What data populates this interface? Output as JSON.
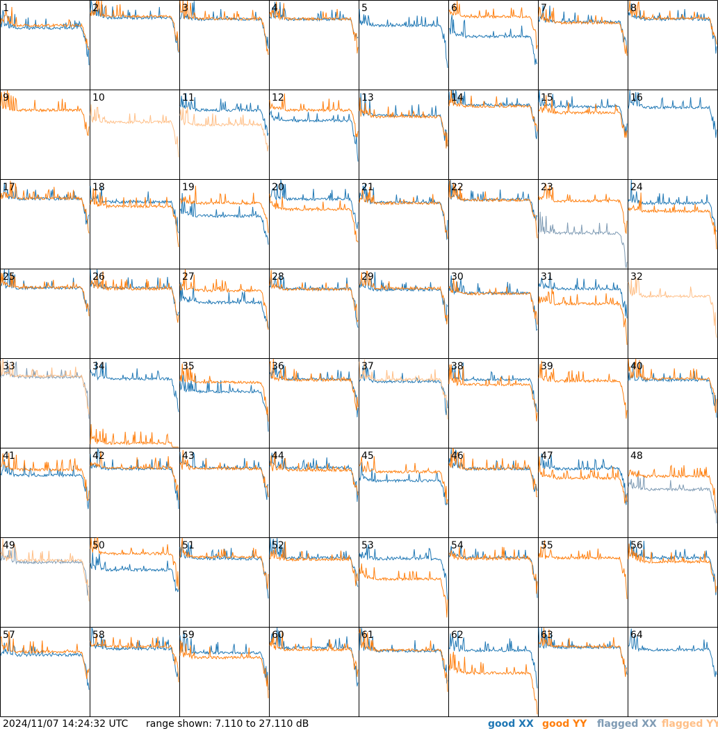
{
  "colors": {
    "good_xx": "#1f77b4",
    "good_yy": "#ff7f0e",
    "flagged_xx": "#7f9bb4",
    "flagged_yy": "#ffbf87"
  },
  "footer": {
    "timestamp": "2024/11/07 14:24:32 UTC",
    "range": "range shown: 7.110 to 27.110 dB",
    "legend_good_xx": "good XX",
    "legend_good_yy": "good YY",
    "legend_flagged_xx": "flagged XX",
    "legend_flagged_yy": "flagged YY"
  },
  "chart_data": {
    "type": "line",
    "title": "",
    "xlabel": "",
    "ylabel": "",
    "ylim": [
      7.11,
      27.11
    ],
    "unit": "dB",
    "grid": "8x8 small multiples",
    "panels": [
      {
        "id": "1",
        "xx": {
          "level": 20.9,
          "flag": false
        },
        "yy": {
          "level": 21.5,
          "flag": false
        }
      },
      {
        "id": "2",
        "xx": {
          "level": 23.2,
          "flag": false
        },
        "yy": {
          "level": 23.6,
          "flag": false
        }
      },
      {
        "id": "3",
        "xx": {
          "level": 22.9,
          "flag": false
        },
        "yy": {
          "level": 23.0,
          "flag": false
        }
      },
      {
        "id": "4",
        "xx": {
          "level": 22.9,
          "flag": false
        },
        "yy": {
          "level": 23.0,
          "flag": false
        }
      },
      {
        "id": "5",
        "xx": {
          "level": 21.5,
          "flag": false
        },
        "yy": {
          "level": null,
          "flag": false
        }
      },
      {
        "id": "6",
        "xx": {
          "level": 19.0,
          "flag": false
        },
        "yy": {
          "level": 23.5,
          "flag": false
        }
      },
      {
        "id": "7",
        "xx": {
          "level": 22.3,
          "flag": false
        },
        "yy": {
          "level": 22.1,
          "flag": false
        }
      },
      {
        "id": "8",
        "xx": {
          "level": 22.9,
          "flag": false
        },
        "yy": {
          "level": 23.1,
          "flag": false
        }
      },
      {
        "id": "9",
        "xx": {
          "level": null,
          "flag": false
        },
        "yy": {
          "level": 22.6,
          "flag": false
        }
      },
      {
        "id": "10",
        "xx": {
          "level": null,
          "flag": true
        },
        "yy": {
          "level": 19.9,
          "flag": true
        }
      },
      {
        "id": "11",
        "xx": {
          "level": 22.6,
          "flag": false
        },
        "yy": {
          "level": 19.3,
          "flag": true
        }
      },
      {
        "id": "12",
        "xx": {
          "level": 20.2,
          "flag": false
        },
        "yy": {
          "level": 22.6,
          "flag": false
        }
      },
      {
        "id": "13",
        "xx": {
          "level": 21.4,
          "flag": false
        },
        "yy": {
          "level": 21.1,
          "flag": false
        }
      },
      {
        "id": "14",
        "xx": {
          "level": 23.8,
          "flag": false
        },
        "yy": {
          "level": 23.5,
          "flag": false
        }
      },
      {
        "id": "15",
        "xx": {
          "level": 23.4,
          "flag": false
        },
        "yy": {
          "level": 22.0,
          "flag": false
        }
      },
      {
        "id": "16",
        "xx": {
          "level": 23.2,
          "flag": false
        },
        "yy": {
          "level": null,
          "flag": false
        }
      },
      {
        "id": "17",
        "xx": {
          "level": 22.8,
          "flag": false
        },
        "yy": {
          "level": 22.9,
          "flag": false
        }
      },
      {
        "id": "18",
        "xx": {
          "level": 22.1,
          "flag": false
        },
        "yy": {
          "level": 21.1,
          "flag": false
        }
      },
      {
        "id": "19",
        "xx": {
          "level": 18.9,
          "flag": false
        },
        "yy": {
          "level": 21.8,
          "flag": false
        }
      },
      {
        "id": "20",
        "xx": {
          "level": 22.7,
          "flag": false
        },
        "yy": {
          "level": 20.4,
          "flag": false
        }
      },
      {
        "id": "21",
        "xx": {
          "level": 22.0,
          "flag": false
        },
        "yy": {
          "level": 21.8,
          "flag": false
        }
      },
      {
        "id": "22",
        "xx": {
          "level": 22.6,
          "flag": false
        },
        "yy": {
          "level": 22.5,
          "flag": false
        }
      },
      {
        "id": "23",
        "xx": {
          "level": 15.0,
          "flag": true
        },
        "yy": {
          "level": 22.3,
          "flag": false
        }
      },
      {
        "id": "24",
        "xx": {
          "level": 21.8,
          "flag": false
        },
        "yy": {
          "level": 20.0,
          "flag": false
        }
      },
      {
        "id": "25",
        "xx": {
          "level": 22.9,
          "flag": false
        },
        "yy": {
          "level": 23.0,
          "flag": false
        }
      },
      {
        "id": "26",
        "xx": {
          "level": 22.9,
          "flag": false
        },
        "yy": {
          "level": 22.7,
          "flag": false
        }
      },
      {
        "id": "27",
        "xx": {
          "level": 19.6,
          "flag": false
        },
        "yy": {
          "level": 22.3,
          "flag": false
        }
      },
      {
        "id": "28",
        "xx": {
          "level": 22.7,
          "flag": false
        },
        "yy": {
          "level": 22.6,
          "flag": false
        }
      },
      {
        "id": "29",
        "xx": {
          "level": 22.5,
          "flag": false
        },
        "yy": {
          "level": 22.8,
          "flag": false
        }
      },
      {
        "id": "30",
        "xx": {
          "level": 21.7,
          "flag": false
        },
        "yy": {
          "level": 21.6,
          "flag": false
        }
      },
      {
        "id": "31",
        "xx": {
          "level": 22.7,
          "flag": false
        },
        "yy": {
          "level": 19.3,
          "flag": false
        }
      },
      {
        "id": "32",
        "xx": {
          "level": null,
          "flag": false
        },
        "yy": {
          "level": 21.0,
          "flag": true
        }
      },
      {
        "id": "33",
        "xx": {
          "level": 23.0,
          "flag": true
        },
        "yy": {
          "level": 23.2,
          "flag": true
        }
      },
      {
        "id": "34",
        "xx": {
          "level": 22.6,
          "flag": false
        },
        "yy": {
          "level": 8.0,
          "flag": false
        }
      },
      {
        "id": "35",
        "xx": {
          "level": 19.7,
          "flag": false
        },
        "yy": {
          "level": 21.8,
          "flag": false
        }
      },
      {
        "id": "36",
        "xx": {
          "level": 22.5,
          "flag": false
        },
        "yy": {
          "level": 22.3,
          "flag": false
        }
      },
      {
        "id": "37",
        "xx": {
          "level": 22.0,
          "flag": false
        },
        "yy": {
          "level": 22.4,
          "flag": true
        }
      },
      {
        "id": "38",
        "xx": {
          "level": 22.4,
          "flag": false
        },
        "yy": {
          "level": 21.3,
          "flag": false
        }
      },
      {
        "id": "39",
        "xx": {
          "level": null,
          "flag": false
        },
        "yy": {
          "level": 22.1,
          "flag": false
        }
      },
      {
        "id": "40",
        "xx": {
          "level": 22.3,
          "flag": false
        },
        "yy": {
          "level": 22.6,
          "flag": false
        }
      },
      {
        "id": "41",
        "xx": {
          "level": 21.0,
          "flag": false
        },
        "yy": {
          "level": 22.3,
          "flag": false
        }
      },
      {
        "id": "42",
        "xx": {
          "level": 22.5,
          "flag": false
        },
        "yy": {
          "level": 22.7,
          "flag": false
        }
      },
      {
        "id": "43",
        "xx": {
          "level": 22.7,
          "flag": false
        },
        "yy": {
          "level": 22.5,
          "flag": false
        }
      },
      {
        "id": "44",
        "xx": {
          "level": 22.7,
          "flag": false
        },
        "yy": {
          "level": 22.2,
          "flag": false
        }
      },
      {
        "id": "45",
        "xx": {
          "level": 19.8,
          "flag": false
        },
        "yy": {
          "level": 21.8,
          "flag": false
        }
      },
      {
        "id": "46",
        "xx": {
          "level": 22.5,
          "flag": false
        },
        "yy": {
          "level": 22.5,
          "flag": false
        }
      },
      {
        "id": "47",
        "xx": {
          "level": 22.5,
          "flag": false
        },
        "yy": {
          "level": 20.4,
          "flag": false
        }
      },
      {
        "id": "48",
        "xx": {
          "level": 17.8,
          "flag": true
        },
        "yy": {
          "level": 20.8,
          "flag": false
        }
      },
      {
        "id": "49",
        "xx": {
          "level": 21.6,
          "flag": true
        },
        "yy": {
          "level": 22.0,
          "flag": true
        }
      },
      {
        "id": "50",
        "xx": {
          "level": 19.9,
          "flag": false
        },
        "yy": {
          "level": 23.6,
          "flag": false
        }
      },
      {
        "id": "51",
        "xx": {
          "level": 22.4,
          "flag": false
        },
        "yy": {
          "level": 22.8,
          "flag": false
        }
      },
      {
        "id": "52",
        "xx": {
          "level": 22.6,
          "flag": false
        },
        "yy": {
          "level": 22.2,
          "flag": false
        }
      },
      {
        "id": "53",
        "xx": {
          "level": 22.4,
          "flag": false
        },
        "yy": {
          "level": 17.8,
          "flag": false
        }
      },
      {
        "id": "54",
        "xx": {
          "level": 22.7,
          "flag": false
        },
        "yy": {
          "level": 22.4,
          "flag": false
        }
      },
      {
        "id": "55",
        "xx": {
          "level": null,
          "flag": false
        },
        "yy": {
          "level": 22.6,
          "flag": false
        }
      },
      {
        "id": "56",
        "xx": {
          "level": 22.6,
          "flag": false
        },
        "yy": {
          "level": 21.7,
          "flag": false
        }
      },
      {
        "id": "57",
        "xx": {
          "level": 20.9,
          "flag": false
        },
        "yy": {
          "level": 21.6,
          "flag": false
        }
      },
      {
        "id": "58",
        "xx": {
          "level": 22.3,
          "flag": false
        },
        "yy": {
          "level": 22.8,
          "flag": false
        }
      },
      {
        "id": "59",
        "xx": {
          "level": 21.4,
          "flag": false
        },
        "yy": {
          "level": 20.3,
          "flag": false
        }
      },
      {
        "id": "60",
        "xx": {
          "level": 22.5,
          "flag": false
        },
        "yy": {
          "level": 22.1,
          "flag": false
        }
      },
      {
        "id": "61",
        "xx": {
          "level": 21.8,
          "flag": false
        },
        "yy": {
          "level": 22.0,
          "flag": false
        }
      },
      {
        "id": "62",
        "xx": {
          "level": 21.9,
          "flag": false
        },
        "yy": {
          "level": 16.8,
          "flag": false
        }
      },
      {
        "id": "63",
        "xx": {
          "level": 22.6,
          "flag": false
        },
        "yy": {
          "level": 22.8,
          "flag": false
        }
      },
      {
        "id": "64",
        "xx": {
          "level": 22.1,
          "flag": false
        },
        "yy": {
          "level": null,
          "flag": false
        }
      }
    ]
  }
}
